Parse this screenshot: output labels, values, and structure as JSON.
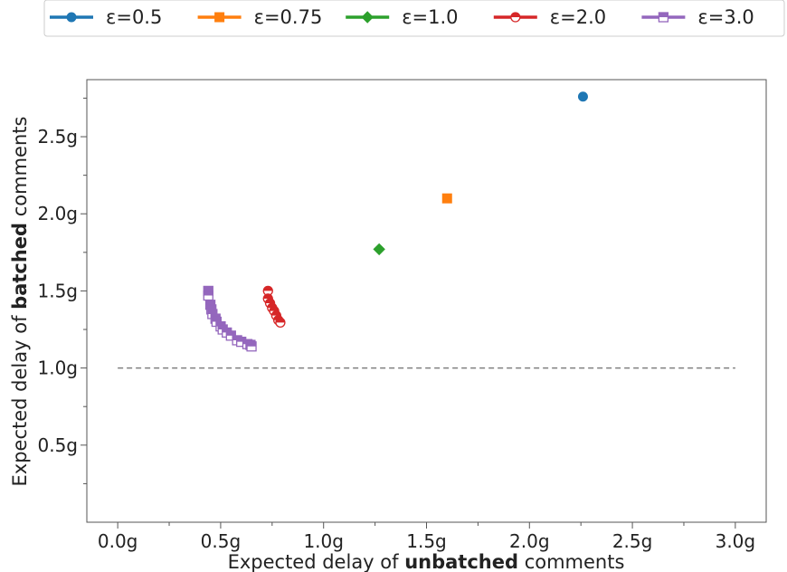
{
  "chart_data": {
    "type": "scatter",
    "title": "",
    "xlabel": {
      "prefix": "Expected delay of ",
      "bold": "unbatched",
      "suffix": " comments"
    },
    "ylabel": {
      "prefix": "Expected delay of ",
      "bold": "batched",
      "suffix": " comments"
    },
    "xlim": [
      -0.15,
      3.15
    ],
    "ylim": [
      0,
      2.87
    ],
    "xticks": [
      {
        "value": 0.0,
        "label": "0.0g"
      },
      {
        "value": 0.5,
        "label": "0.5g"
      },
      {
        "value": 1.0,
        "label": "1.0g"
      },
      {
        "value": 1.5,
        "label": "1.5g"
      },
      {
        "value": 2.0,
        "label": "2.0g"
      },
      {
        "value": 2.5,
        "label": "2.5g"
      },
      {
        "value": 3.0,
        "label": "3.0g"
      }
    ],
    "yticks": [
      {
        "value": 0.5,
        "label": "0.5g"
      },
      {
        "value": 1.0,
        "label": "1.0g"
      },
      {
        "value": 1.5,
        "label": "1.5g"
      },
      {
        "value": 2.0,
        "label": "2.0g"
      },
      {
        "value": 2.5,
        "label": "2.5g"
      }
    ],
    "reference_line": {
      "y": 1.0,
      "x_from": 0.0,
      "x_to": 3.0,
      "style": "dashed",
      "color": "#808080"
    },
    "legend": {
      "placement": "top",
      "columns": 5
    },
    "grid": false,
    "series": [
      {
        "name": "ε=0.5",
        "color": "#1f77b4",
        "marker": "circle",
        "fill": "filled",
        "points": [
          [
            2.26,
            2.76
          ]
        ]
      },
      {
        "name": "ε=0.75",
        "color": "#ff7f0e",
        "marker": "square",
        "fill": "filled",
        "points": [
          [
            1.6,
            2.1
          ]
        ]
      },
      {
        "name": "ε=1.0",
        "color": "#2ca02c",
        "marker": "diamond",
        "fill": "filled",
        "points": [
          [
            1.27,
            1.77
          ]
        ]
      },
      {
        "name": "ε=2.0",
        "color": "#d62728",
        "marker": "circle",
        "fill": "half",
        "points": [
          [
            0.73,
            1.5
          ],
          [
            0.73,
            1.45
          ],
          [
            0.74,
            1.42
          ],
          [
            0.75,
            1.39
          ],
          [
            0.76,
            1.37
          ],
          [
            0.77,
            1.34
          ],
          [
            0.78,
            1.31
          ],
          [
            0.79,
            1.295
          ]
        ]
      },
      {
        "name": "ε=3.0",
        "color": "#9467bd",
        "marker": "square",
        "fill": "half",
        "points": [
          [
            0.44,
            1.5
          ],
          [
            0.44,
            1.47
          ],
          [
            0.45,
            1.41
          ],
          [
            0.455,
            1.38
          ],
          [
            0.46,
            1.35
          ],
          [
            0.475,
            1.32
          ],
          [
            0.48,
            1.3
          ],
          [
            0.5,
            1.27
          ],
          [
            0.51,
            1.25
          ],
          [
            0.53,
            1.23
          ],
          [
            0.55,
            1.21
          ],
          [
            0.58,
            1.18
          ],
          [
            0.6,
            1.17
          ],
          [
            0.63,
            1.155
          ],
          [
            0.645,
            1.15
          ],
          [
            0.65,
            1.14
          ]
        ]
      }
    ]
  }
}
